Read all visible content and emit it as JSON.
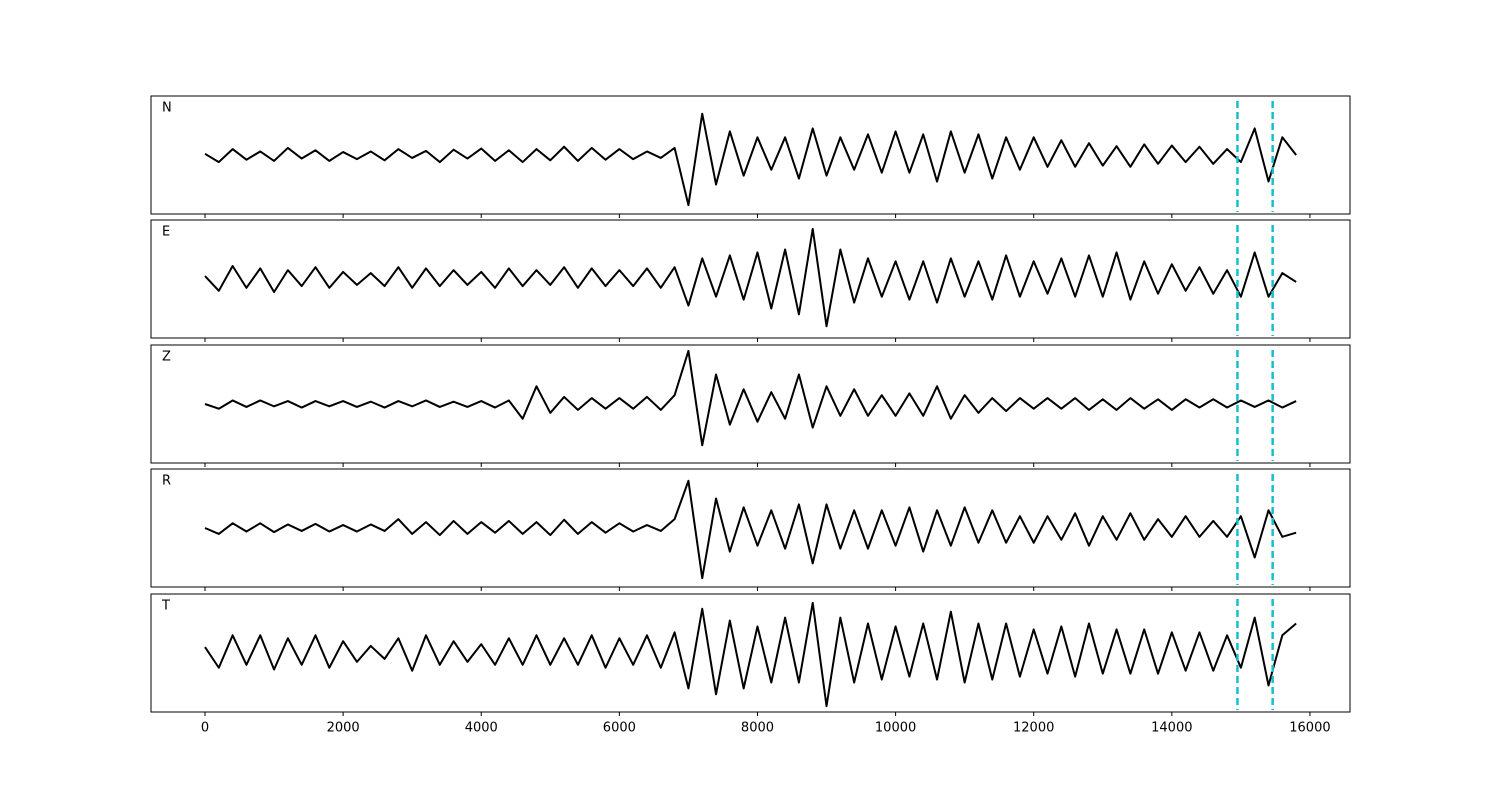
{
  "chart_data": {
    "type": "line",
    "x": [
      0,
      200,
      400,
      600,
      800,
      1000,
      1200,
      1400,
      1600,
      1800,
      2000,
      2200,
      2400,
      2600,
      2800,
      3000,
      3200,
      3400,
      3600,
      3800,
      4000,
      4200,
      4400,
      4600,
      4800,
      5000,
      5200,
      5400,
      5600,
      5800,
      6000,
      6200,
      6400,
      6600,
      6800,
      7000,
      7200,
      7400,
      7600,
      7800,
      8000,
      8200,
      8400,
      8600,
      8800,
      9000,
      9200,
      9400,
      9600,
      9800,
      10000,
      10200,
      10400,
      10600,
      10800,
      11000,
      11200,
      11400,
      11600,
      11800,
      12000,
      12200,
      12400,
      12600,
      12800,
      13000,
      13200,
      13400,
      13600,
      13800,
      14000,
      14200,
      14400,
      14600,
      14800,
      15000,
      15200,
      15400,
      15600,
      15800
    ],
    "xlim": [
      -782,
      16580
    ],
    "xticks": [
      0,
      2000,
      4000,
      6000,
      8000,
      10000,
      12000,
      14000,
      16000
    ],
    "panels": [
      {
        "label": "N",
        "color": "#000000",
        "ylim": [
          -1,
          1
        ],
        "values": [
          0.02,
          -0.12,
          0.1,
          -0.08,
          0.06,
          -0.1,
          0.12,
          -0.06,
          0.08,
          -0.1,
          0.05,
          -0.07,
          0.06,
          -0.09,
          0.1,
          -0.05,
          0.07,
          -0.12,
          0.09,
          -0.06,
          0.11,
          -0.1,
          0.08,
          -0.12,
          0.1,
          -0.09,
          0.14,
          -0.1,
          0.12,
          -0.08,
          0.1,
          -0.07,
          0.06,
          -0.05,
          0.12,
          -0.85,
          0.7,
          -0.5,
          0.4,
          -0.35,
          0.3,
          -0.25,
          0.3,
          -0.4,
          0.45,
          -0.35,
          0.3,
          -0.25,
          0.35,
          -0.3,
          0.4,
          -0.3,
          0.35,
          -0.45,
          0.4,
          -0.3,
          0.35,
          -0.4,
          0.3,
          -0.25,
          0.3,
          -0.2,
          0.25,
          -0.2,
          0.2,
          -0.18,
          0.15,
          -0.2,
          0.18,
          -0.15,
          0.16,
          -0.12,
          0.14,
          -0.15,
          0.1,
          -0.12,
          0.45,
          -0.45,
          0.3,
          0.0
        ]
      },
      {
        "label": "E",
        "color": "#000000",
        "ylim": [
          -1,
          1
        ],
        "values": [
          0.05,
          -0.2,
          0.22,
          -0.15,
          0.18,
          -0.22,
          0.15,
          -0.12,
          0.2,
          -0.15,
          0.12,
          -0.1,
          0.1,
          -0.12,
          0.2,
          -0.15,
          0.18,
          -0.12,
          0.15,
          -0.1,
          0.12,
          -0.15,
          0.18,
          -0.12,
          0.15,
          -0.1,
          0.2,
          -0.15,
          0.18,
          -0.12,
          0.15,
          -0.12,
          0.18,
          -0.15,
          0.2,
          -0.45,
          0.35,
          -0.3,
          0.4,
          -0.35,
          0.45,
          -0.5,
          0.5,
          -0.6,
          0.85,
          -0.8,
          0.5,
          -0.4,
          0.35,
          -0.3,
          0.3,
          -0.35,
          0.3,
          -0.4,
          0.35,
          -0.3,
          0.3,
          -0.35,
          0.4,
          -0.3,
          0.3,
          -0.25,
          0.35,
          -0.3,
          0.4,
          -0.3,
          0.45,
          -0.35,
          0.3,
          -0.25,
          0.25,
          -0.2,
          0.2,
          -0.25,
          0.15,
          -0.3,
          0.45,
          -0.3,
          0.1,
          -0.05
        ]
      },
      {
        "label": "Z",
        "color": "#000000",
        "ylim": [
          -1,
          1
        ],
        "values": [
          0.0,
          -0.08,
          0.06,
          -0.05,
          0.06,
          -0.04,
          0.05,
          -0.06,
          0.05,
          -0.04,
          0.05,
          -0.05,
          0.04,
          -0.06,
          0.05,
          -0.04,
          0.06,
          -0.05,
          0.04,
          -0.05,
          0.05,
          -0.06,
          0.06,
          -0.25,
          0.3,
          -0.15,
          0.12,
          -0.1,
          0.1,
          -0.08,
          0.1,
          -0.08,
          0.12,
          -0.1,
          0.15,
          0.9,
          -0.7,
          0.5,
          -0.35,
          0.25,
          -0.3,
          0.2,
          -0.25,
          0.5,
          -0.4,
          0.3,
          -0.2,
          0.25,
          -0.2,
          0.15,
          -0.2,
          0.18,
          -0.2,
          0.3,
          -0.25,
          0.15,
          -0.15,
          0.1,
          -0.12,
          0.1,
          -0.08,
          0.1,
          -0.08,
          0.1,
          -0.1,
          0.08,
          -0.1,
          0.1,
          -0.08,
          0.08,
          -0.1,
          0.08,
          -0.06,
          0.08,
          -0.06,
          0.06,
          -0.05,
          0.06,
          -0.06,
          0.05
        ]
      },
      {
        "label": "R",
        "color": "#000000",
        "ylim": [
          -1,
          1
        ],
        "values": [
          0.0,
          -0.1,
          0.08,
          -0.06,
          0.08,
          -0.07,
          0.06,
          -0.05,
          0.07,
          -0.06,
          0.05,
          -0.06,
          0.06,
          -0.05,
          0.15,
          -0.1,
          0.1,
          -0.12,
          0.12,
          -0.1,
          0.1,
          -0.08,
          0.12,
          -0.1,
          0.1,
          -0.12,
          0.14,
          -0.1,
          0.1,
          -0.08,
          0.08,
          -0.06,
          0.05,
          -0.05,
          0.15,
          0.8,
          -0.85,
          0.5,
          -0.4,
          0.35,
          -0.3,
          0.3,
          -0.35,
          0.4,
          -0.6,
          0.4,
          -0.35,
          0.3,
          -0.35,
          0.3,
          -0.3,
          0.35,
          -0.4,
          0.3,
          -0.3,
          0.35,
          -0.25,
          0.3,
          -0.25,
          0.2,
          -0.25,
          0.2,
          -0.2,
          0.25,
          -0.3,
          0.2,
          -0.2,
          0.25,
          -0.2,
          0.15,
          -0.15,
          0.2,
          -0.15,
          0.12,
          -0.15,
          0.2,
          -0.5,
          0.3,
          -0.15,
          -0.08
        ]
      },
      {
        "label": "T",
        "color": "#000000",
        "ylim": [
          -1,
          1
        ],
        "values": [
          0.1,
          -0.25,
          0.3,
          -0.2,
          0.3,
          -0.28,
          0.25,
          -0.2,
          0.3,
          -0.25,
          0.2,
          -0.15,
          0.12,
          -0.1,
          0.25,
          -0.3,
          0.3,
          -0.2,
          0.2,
          -0.15,
          0.15,
          -0.2,
          0.25,
          -0.2,
          0.3,
          -0.2,
          0.25,
          -0.2,
          0.3,
          -0.25,
          0.25,
          -0.2,
          0.3,
          -0.25,
          0.35,
          -0.6,
          0.75,
          -0.7,
          0.55,
          -0.6,
          0.45,
          -0.5,
          0.6,
          -0.5,
          0.85,
          -0.9,
          0.6,
          -0.5,
          0.5,
          -0.45,
          0.45,
          -0.4,
          0.5,
          -0.45,
          0.7,
          -0.5,
          0.5,
          -0.45,
          0.5,
          -0.4,
          0.4,
          -0.35,
          0.45,
          -0.4,
          0.5,
          -0.35,
          0.4,
          -0.35,
          0.4,
          -0.35,
          0.35,
          -0.3,
          0.35,
          -0.3,
          0.3,
          -0.25,
          0.6,
          -0.55,
          0.3,
          0.5
        ]
      }
    ],
    "vlines": {
      "values": [
        14950,
        15460
      ],
      "color": "#17becf"
    }
  }
}
